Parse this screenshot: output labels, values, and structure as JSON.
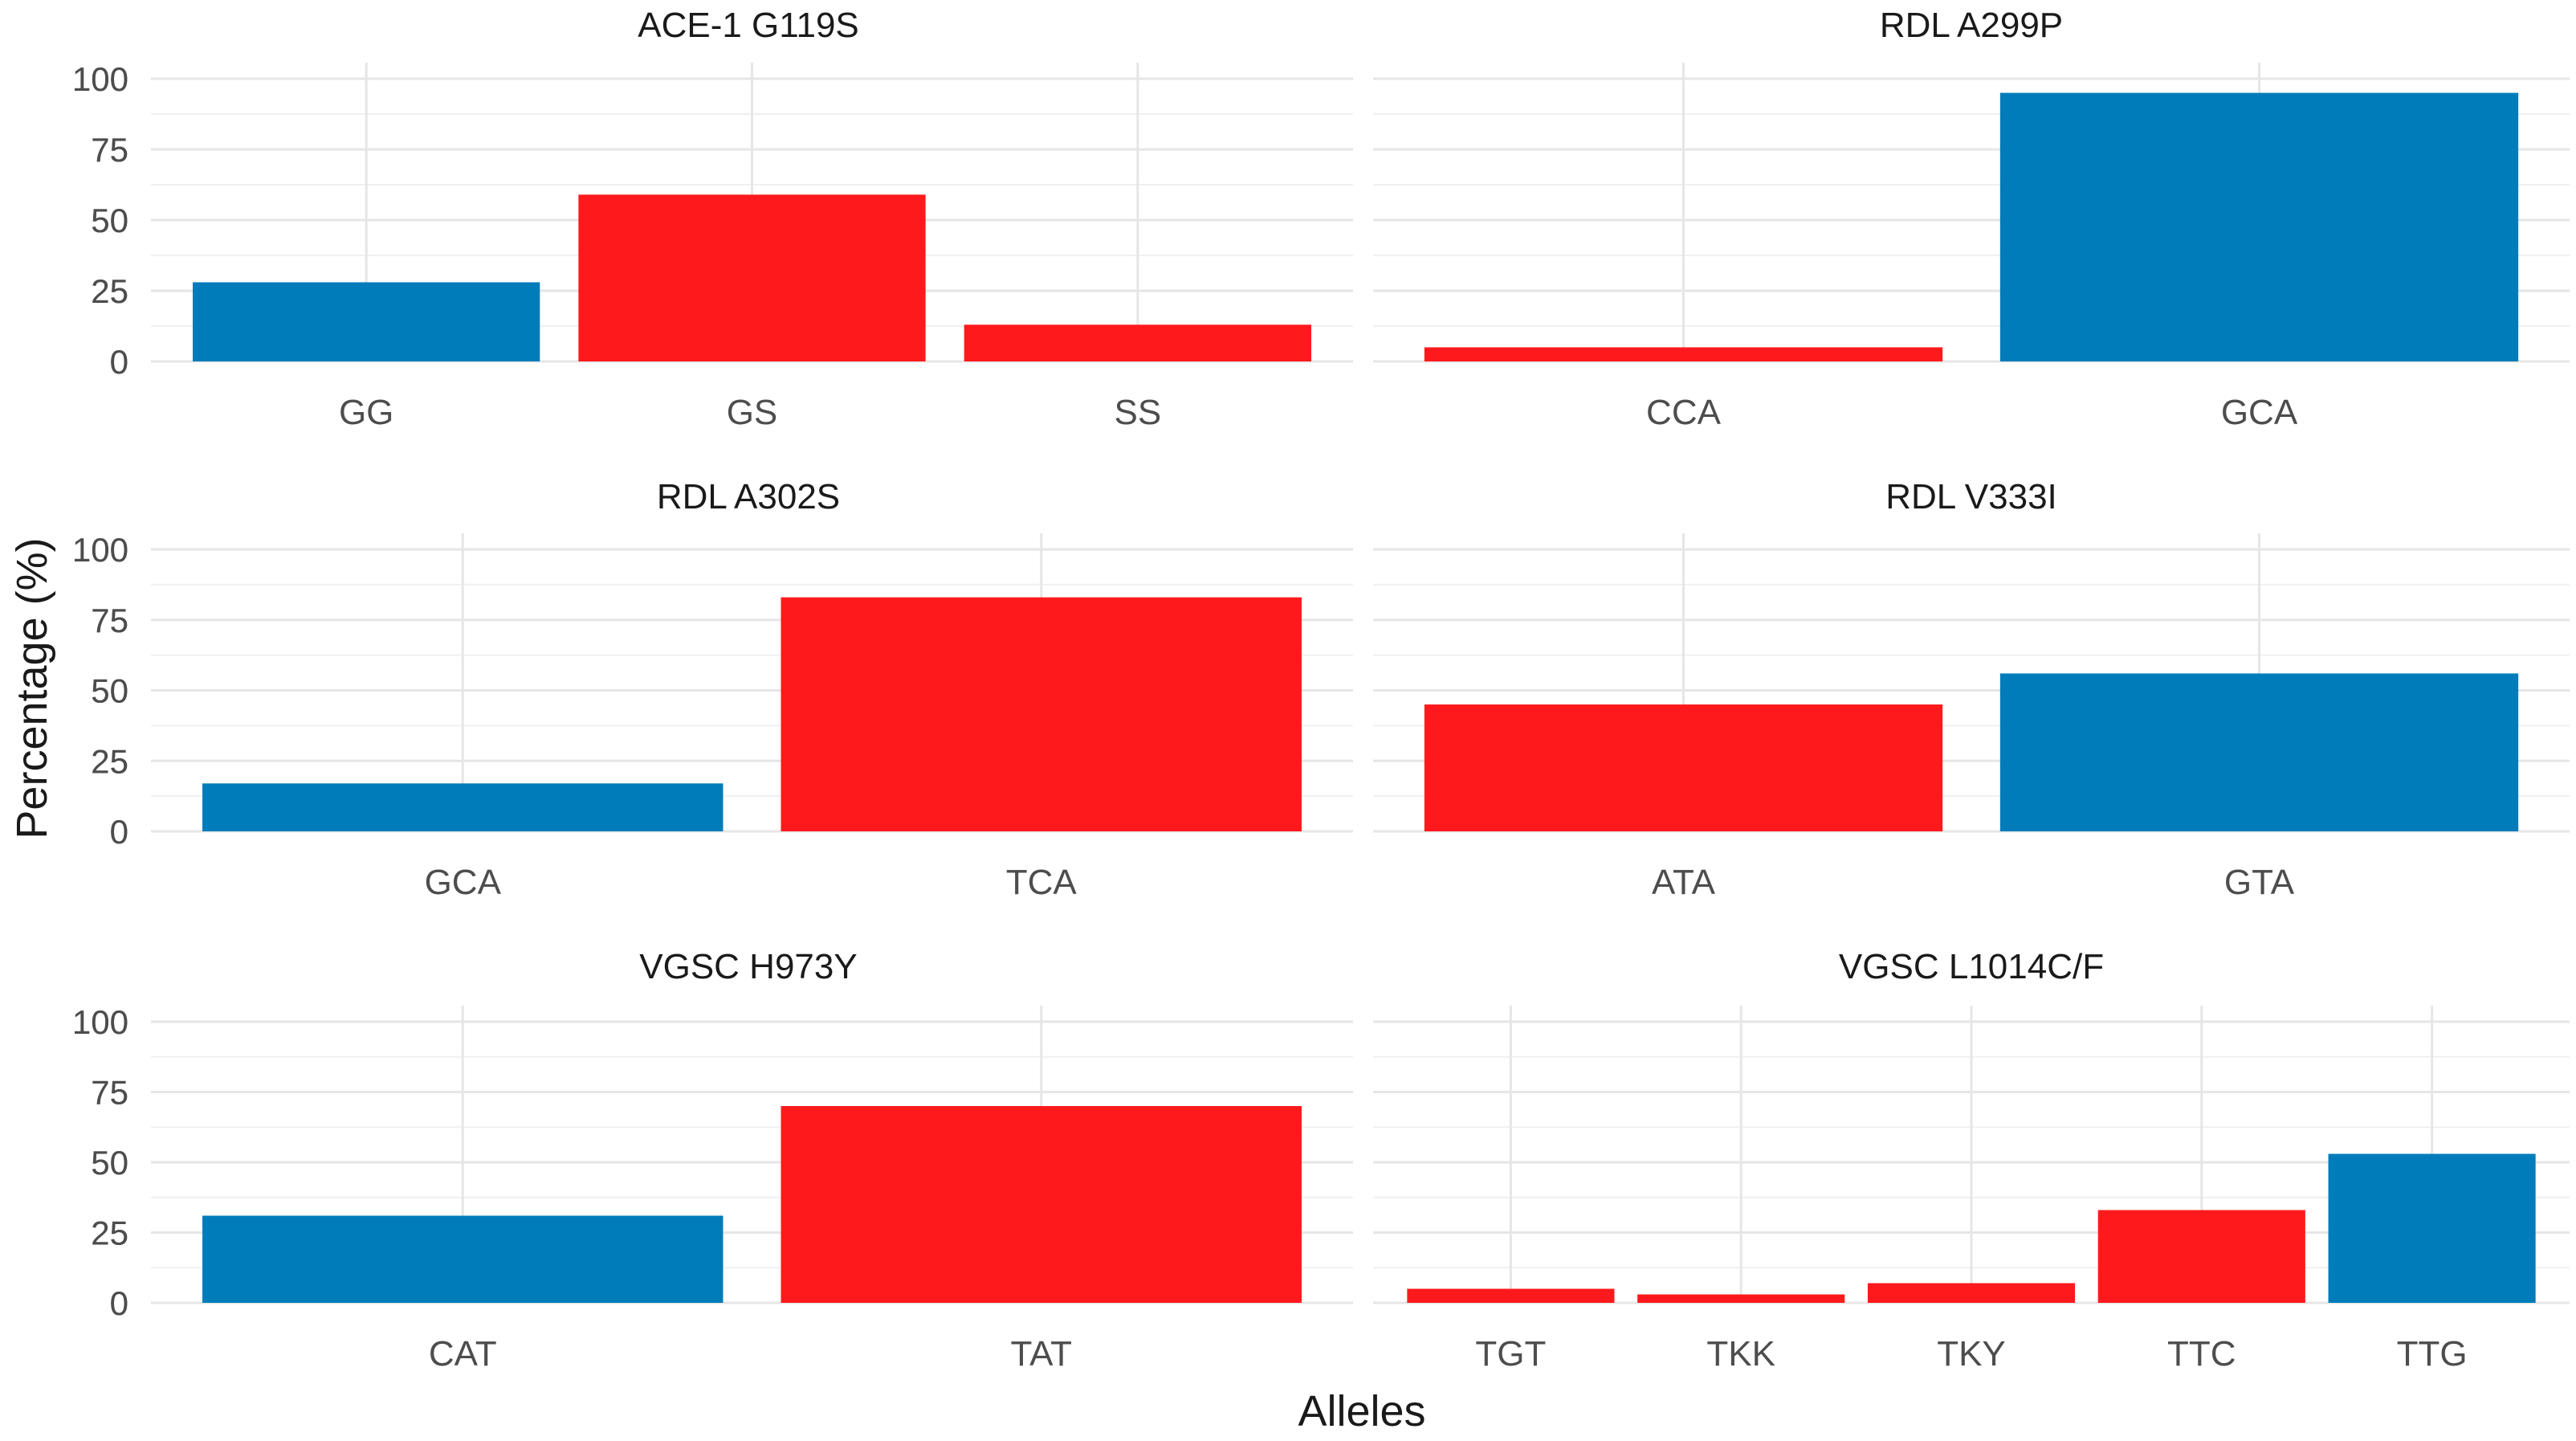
{
  "figure": {
    "ylabel": "Percentage (%)",
    "xlabel": "Alleles"
  },
  "colors": {
    "resistant": "#fe1a1c",
    "susceptible": "#007cba"
  },
  "chart_data": [
    {
      "type": "bar",
      "title": "ACE-1 G119S",
      "categories": [
        "GG",
        "GS",
        "SS"
      ],
      "values": [
        28,
        59,
        13
      ],
      "color_keys": [
        "susceptible",
        "resistant",
        "resistant"
      ],
      "ylim": [
        0,
        100
      ],
      "yticks": [
        0,
        25,
        50,
        75,
        100
      ]
    },
    {
      "type": "bar",
      "title": "RDL A299P",
      "categories": [
        "CCA",
        "GCA"
      ],
      "values": [
        5,
        95
      ],
      "color_keys": [
        "resistant",
        "susceptible"
      ],
      "ylim": [
        0,
        100
      ],
      "yticks": [
        0,
        25,
        50,
        75,
        100
      ]
    },
    {
      "type": "bar",
      "title": "RDL A302S",
      "categories": [
        "GCA",
        "TCA"
      ],
      "values": [
        17,
        83
      ],
      "color_keys": [
        "susceptible",
        "resistant"
      ],
      "ylim": [
        0,
        100
      ],
      "yticks": [
        0,
        25,
        50,
        75,
        100
      ]
    },
    {
      "type": "bar",
      "title": "RDL V333I",
      "categories": [
        "ATA",
        "GTA"
      ],
      "values": [
        45,
        56
      ],
      "color_keys": [
        "resistant",
        "susceptible"
      ],
      "ylim": [
        0,
        100
      ],
      "yticks": [
        0,
        25,
        50,
        75,
        100
      ]
    },
    {
      "type": "bar",
      "title": "VGSC H973Y",
      "categories": [
        "CAT",
        "TAT"
      ],
      "values": [
        31,
        70
      ],
      "color_keys": [
        "susceptible",
        "resistant"
      ],
      "ylim": [
        0,
        100
      ],
      "yticks": [
        0,
        25,
        50,
        75,
        100
      ]
    },
    {
      "type": "bar",
      "title": "VGSC L1014C/F",
      "categories": [
        "TGT",
        "TKK",
        "TKY",
        "TTC",
        "TTG"
      ],
      "values": [
        5,
        3,
        7,
        33,
        53
      ],
      "color_keys": [
        "resistant",
        "resistant",
        "resistant",
        "resistant",
        "susceptible"
      ],
      "ylim": [
        0,
        100
      ],
      "yticks": [
        0,
        25,
        50,
        75,
        100
      ]
    }
  ]
}
